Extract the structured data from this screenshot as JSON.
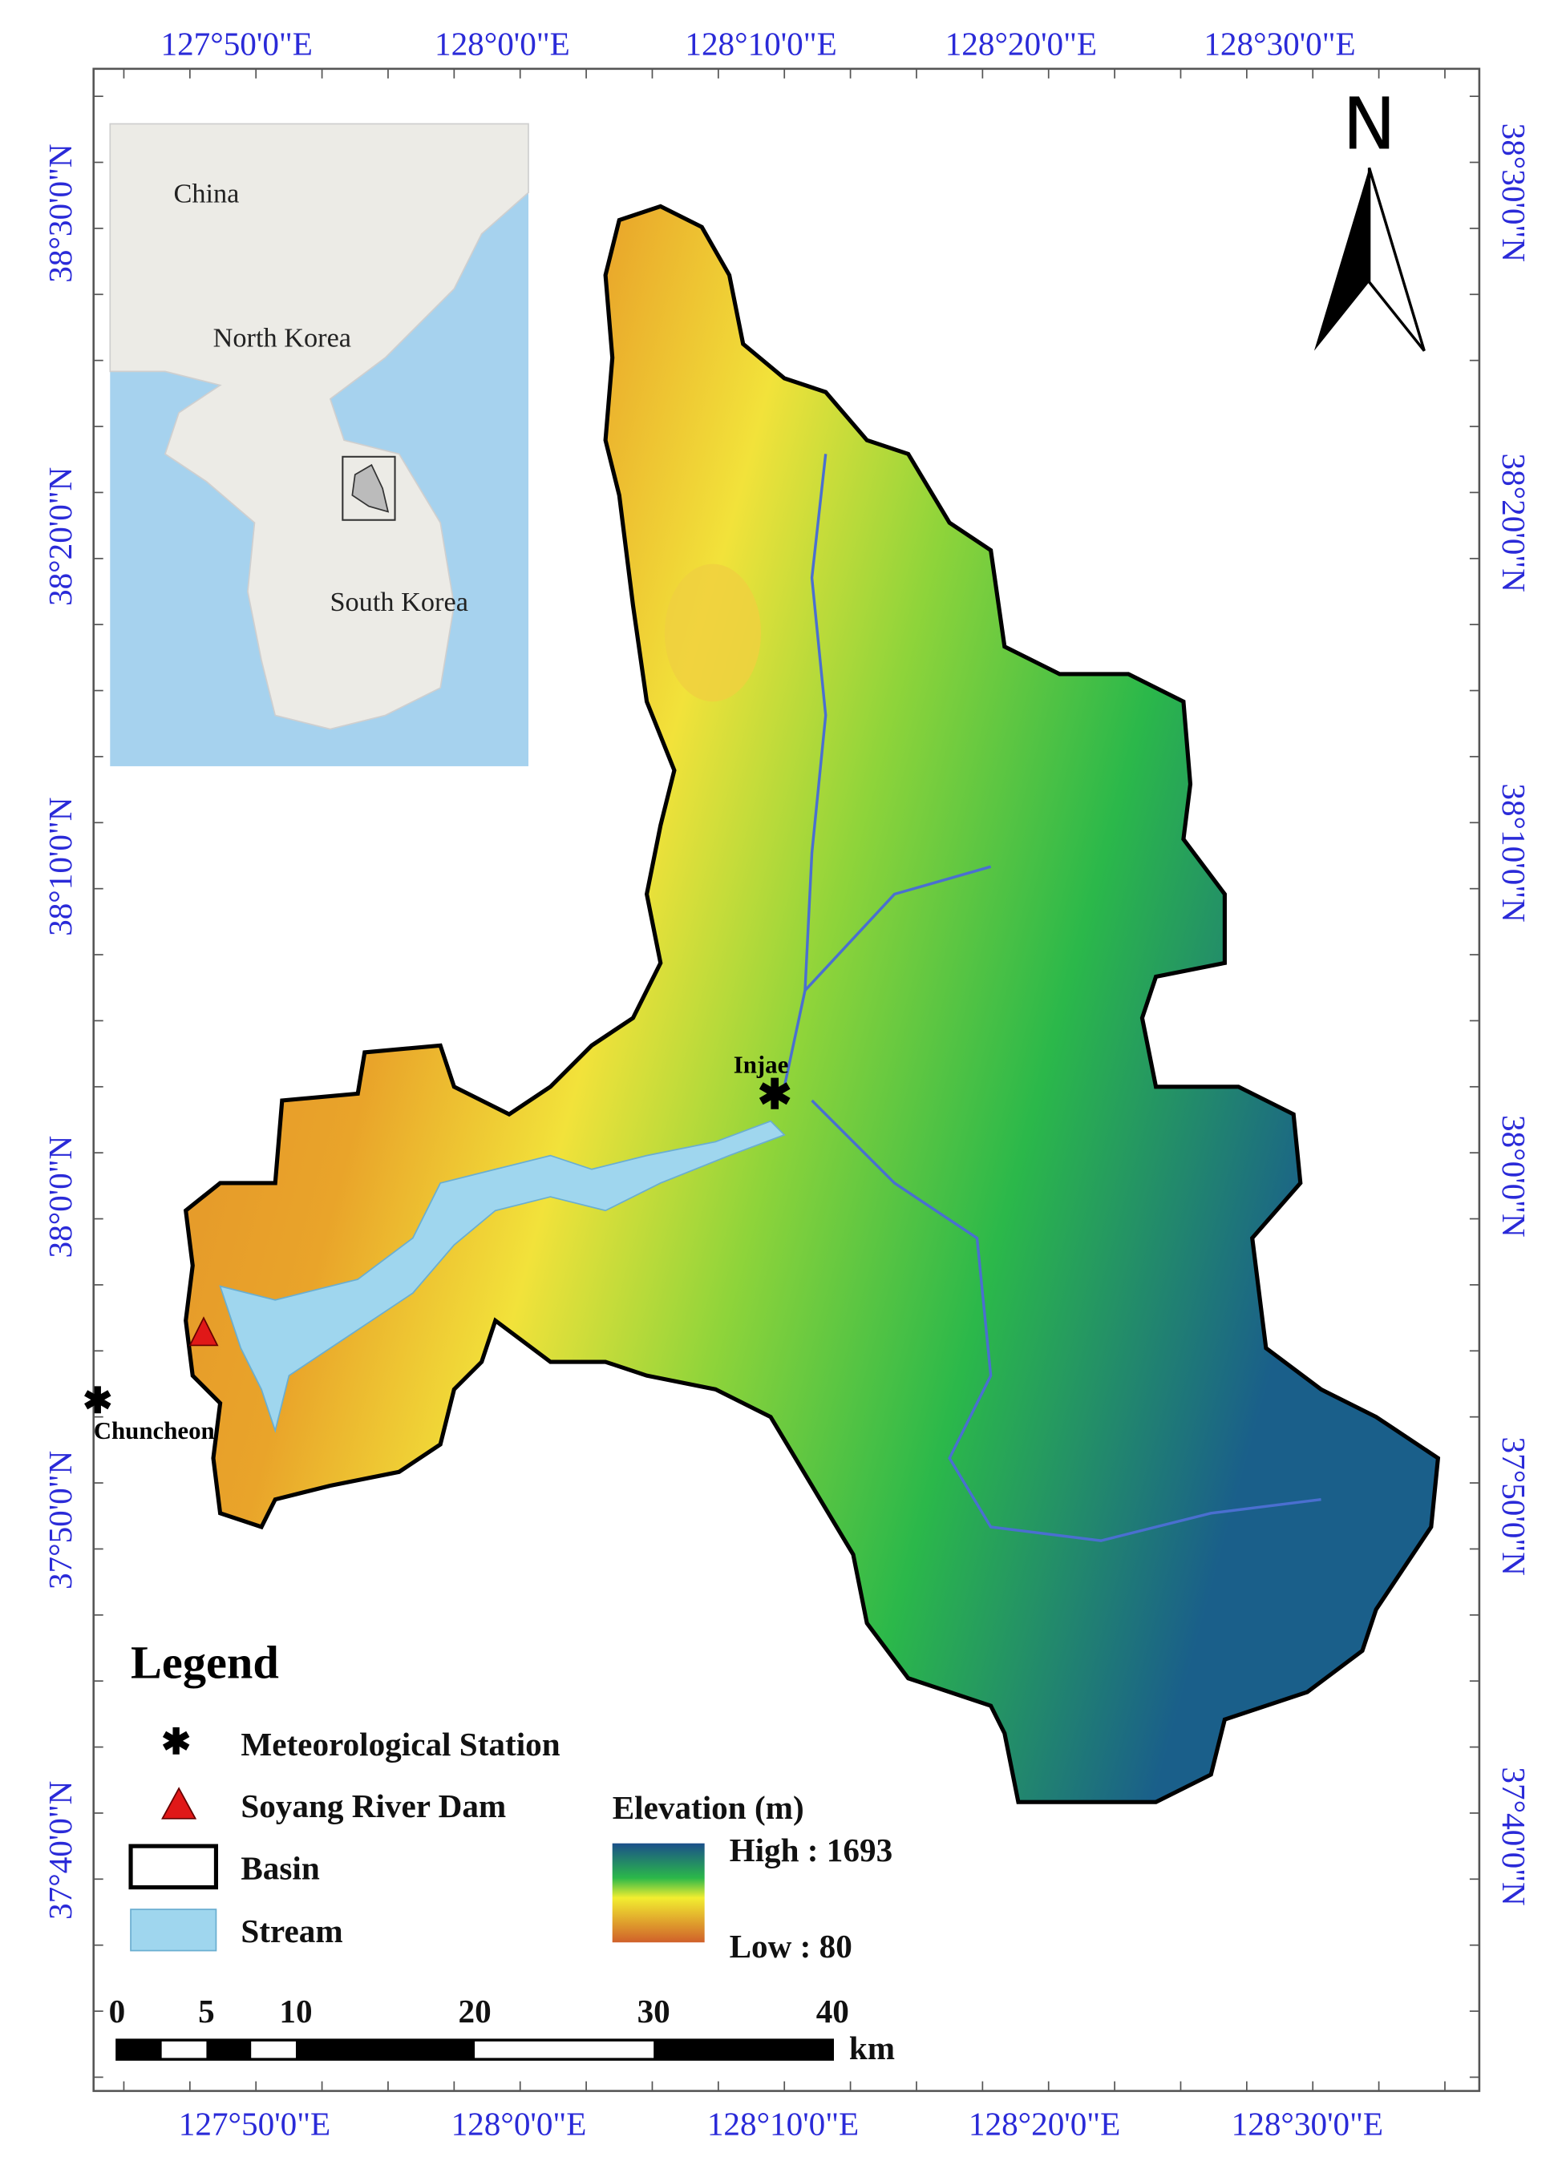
{
  "map": {
    "top_labels": [
      "127°50'0\"E",
      "128°0'0\"E",
      "128°10'0\"E",
      "128°20'0\"E",
      "128°30'0\"E"
    ],
    "bottom_labels": [
      "127°50'0\"E",
      "128°0'0\"E",
      "128°10'0\"E",
      "128°20'0\"E",
      "128°30'0\"E"
    ],
    "left_labels": [
      "38°30'0\"N",
      "38°20'0\"N",
      "38°10'0\"N",
      "38°0'0\"N",
      "37°50'0\"N",
      "37°40'0\"N"
    ],
    "right_labels": [
      "38°30'0\"N",
      "38°20'0\"N",
      "38°10'0\"N",
      "38°0'0\"N",
      "37°50'0\"N",
      "37°40'0\"N"
    ],
    "inset_labels": [
      "China",
      "North Korea",
      "South Korea"
    ],
    "north": "N",
    "places": [
      "Injae",
      "Chuncheon"
    ],
    "legend": {
      "title": "Legend",
      "items": [
        "Meteorological Station",
        "Soyang River Dam",
        "Basin",
        "Stream"
      ],
      "elevation_title": "Elevation (m)",
      "high": "High : 1693",
      "low": "Low : 80"
    },
    "scale_bar": {
      "ticks": [
        0,
        5,
        10,
        20,
        30,
        40
      ],
      "unit": "km"
    }
  }
}
